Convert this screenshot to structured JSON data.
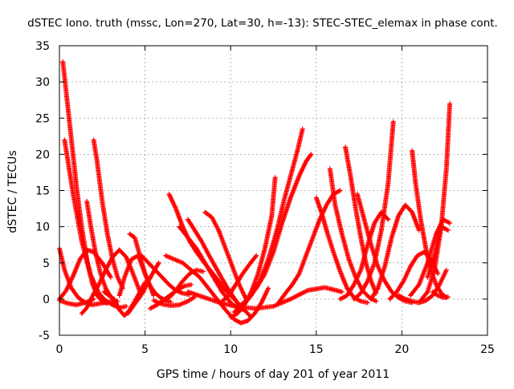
{
  "chart_data": {
    "type": "scatter",
    "title": "dSTEC Iono. truth (mssc, Lon=270, Lat=30, h=-13): STEC-STEC_elemax in phase cont.",
    "xlabel": "GPS time / hours of day 201 of year 2011",
    "ylabel": "dSTEC  / TECUs",
    "xlim": [
      0,
      25
    ],
    "ylim": [
      -5,
      35
    ],
    "xticks": [
      0,
      5,
      10,
      15,
      20,
      25
    ],
    "yticks": [
      -5,
      0,
      5,
      10,
      15,
      20,
      25,
      30,
      35
    ],
    "grid": true,
    "marker": "+",
    "color": "#ff0000",
    "series": [
      {
        "x": [
          0.2,
          0.4,
          0.7,
          1.0,
          1.3,
          1.6,
          1.9,
          2.2,
          2.5,
          2.8
        ],
        "y": [
          32.8,
          28.5,
          22.0,
          15.5,
          10.0,
          5.5,
          2.3,
          0.5,
          -0.3,
          -0.6
        ]
      },
      {
        "x": [
          0.3,
          0.8,
          1.3,
          1.8,
          2.3,
          2.7,
          3.1,
          3.5,
          3.9
        ],
        "y": [
          22.0,
          14.5,
          8.0,
          3.5,
          0.8,
          -0.2,
          -0.8,
          -1.2,
          -1.0
        ]
      },
      {
        "x": [
          0.0,
          0.3,
          0.7,
          1.1,
          1.5,
          1.9,
          2.4,
          2.9,
          3.4
        ],
        "y": [
          7.0,
          4.0,
          1.5,
          0.2,
          -0.5,
          -0.8,
          -0.6,
          -0.4,
          -0.3
        ]
      },
      {
        "x": [
          0.0,
          0.5,
          1.0,
          1.5,
          2.0
        ],
        "y": [
          -0.2,
          -0.6,
          -0.8,
          -0.5,
          0.0
        ]
      },
      {
        "x": [
          0.0,
          0.4,
          0.8,
          1.2,
          1.6,
          2.0,
          2.5,
          3.0
        ],
        "y": [
          0.0,
          1.2,
          3.2,
          5.5,
          6.8,
          6.5,
          5.0,
          3.0
        ]
      },
      {
        "x": [
          1.3,
          1.6,
          1.9,
          2.3,
          2.7,
          3.1,
          3.5,
          3.9,
          4.3,
          4.7
        ],
        "y": [
          -2.0,
          -1.2,
          0.3,
          2.0,
          4.0,
          5.8,
          6.8,
          5.8,
          3.5,
          1.0
        ]
      },
      {
        "x": [
          1.6,
          1.8,
          2.1,
          2.4,
          2.7,
          3.0,
          3.3
        ],
        "y": [
          13.5,
          10.5,
          6.5,
          3.5,
          1.5,
          0.3,
          -0.5
        ]
      },
      {
        "x": [
          2.0,
          2.2,
          2.5,
          2.8,
          3.1,
          3.4,
          3.7
        ],
        "y": [
          22.0,
          19.0,
          13.5,
          9.0,
          5.5,
          3.0,
          1.5
        ]
      },
      {
        "x": [
          2.6,
          2.9,
          3.2,
          3.5,
          3.8,
          4.1,
          4.4,
          4.7,
          5.0
        ],
        "y": [
          1.0,
          0.5,
          0.0,
          -1.5,
          -2.3,
          -1.5,
          -0.3,
          1.0,
          2.3
        ]
      },
      {
        "x": [
          3.5,
          3.8,
          4.2,
          4.6,
          5.0,
          5.5
        ],
        "y": [
          0.5,
          3.0,
          5.5,
          6.0,
          3.5,
          0.5
        ]
      },
      {
        "x": [
          4.0,
          4.3,
          4.6,
          4.9,
          5.2,
          5.5,
          5.8
        ],
        "y": [
          -2.0,
          -1.0,
          0.0,
          1.0,
          2.5,
          3.8,
          5.0
        ]
      },
      {
        "x": [
          4.1,
          4.4,
          4.7,
          5.0,
          5.3,
          5.6,
          5.9,
          6.2,
          6.5
        ],
        "y": [
          9.0,
          8.5,
          6.0,
          3.5,
          1.8,
          0.8,
          0.2,
          -0.2,
          -0.4
        ]
      },
      {
        "x": [
          4.8,
          5.2,
          5.6,
          6.0,
          6.4,
          6.8,
          7.2,
          7.6
        ],
        "y": [
          6.0,
          5.0,
          4.0,
          3.0,
          2.0,
          1.2,
          0.8,
          0.6
        ]
      },
      {
        "x": [
          5.3,
          5.7,
          6.1,
          6.5,
          6.9,
          7.3,
          7.7
        ],
        "y": [
          -1.3,
          -0.8,
          -0.1,
          0.6,
          1.3,
          1.8,
          2.0
        ]
      },
      {
        "x": [
          5.5,
          6.0,
          6.5,
          7.0,
          7.5,
          7.9
        ],
        "y": [
          -0.2,
          -0.7,
          -0.9,
          -0.8,
          -0.3,
          0.3
        ]
      },
      {
        "x": [
          6.2,
          6.5,
          6.8,
          7.2,
          7.6,
          8.0,
          8.4
        ],
        "y": [
          0.0,
          0.4,
          1.2,
          2.5,
          3.5,
          4.0,
          3.8
        ]
      },
      {
        "x": [
          6.4,
          6.8,
          7.2,
          7.6,
          8.0,
          8.4,
          8.8,
          9.2,
          9.6,
          10.0,
          10.4,
          10.8,
          11.2
        ],
        "y": [
          14.5,
          12.5,
          10.0,
          8.0,
          6.5,
          5.2,
          4.0,
          2.8,
          1.5,
          0.5,
          -0.5,
          -1.5,
          -2.5
        ]
      },
      {
        "x": [
          6.2,
          6.7,
          7.2,
          7.7,
          8.2,
          8.7,
          9.2,
          9.7,
          10.2,
          10.6,
          11.0,
          11.4,
          11.8,
          12.2
        ],
        "y": [
          6.0,
          5.5,
          5.0,
          4.0,
          3.0,
          1.5,
          0.0,
          -1.5,
          -2.8,
          -3.3,
          -3.0,
          -2.0,
          -0.5,
          1.5
        ]
      },
      {
        "x": [
          7.5,
          7.9,
          8.3,
          8.7,
          9.1,
          9.5,
          9.9,
          10.3,
          10.7
        ],
        "y": [
          11.0,
          9.5,
          8.0,
          6.2,
          4.5,
          2.8,
          1.2,
          -0.2,
          -1.5
        ]
      },
      {
        "x": [
          7.0,
          7.5,
          8.0,
          8.5,
          9.0,
          9.5,
          10.0,
          10.5
        ],
        "y": [
          10.0,
          8.5,
          7.0,
          5.0,
          3.0,
          1.0,
          -0.5,
          -1.5
        ]
      },
      {
        "x": [
          8.5,
          8.9,
          9.3,
          9.7,
          10.1,
          10.5,
          10.9
        ],
        "y": [
          12.0,
          11.3,
          9.5,
          7.0,
          4.5,
          2.0,
          0.0
        ]
      },
      {
        "x": [
          7.5,
          8.5,
          9.5,
          10.5,
          11.5,
          12.5,
          13.5,
          14.5,
          15.5,
          16.5
        ],
        "y": [
          1.0,
          0.2,
          -0.6,
          -1.1,
          -1.3,
          -1.0,
          0.0,
          1.2,
          1.6,
          1.0
        ]
      },
      {
        "x": [
          10.2,
          10.7,
          11.2,
          11.7,
          12.2,
          12.7,
          13.1,
          13.5,
          13.9,
          14.2
        ],
        "y": [
          -1.8,
          -1.0,
          0.5,
          2.5,
          5.5,
          9.5,
          13.5,
          17.0,
          20.5,
          23.5
        ]
      },
      {
        "x": [
          10.5,
          11.0,
          11.5,
          12.0,
          12.5,
          13.0,
          13.5,
          14.0,
          14.4,
          14.7
        ],
        "y": [
          -1.0,
          0.0,
          1.5,
          3.5,
          6.5,
          10.5,
          14.0,
          17.0,
          19.0,
          20.0
        ]
      },
      {
        "x": [
          10.0,
          10.4,
          10.8,
          11.2,
          11.6,
          12.0,
          12.4,
          12.6
        ],
        "y": [
          -2.5,
          -2.0,
          -0.8,
          1.0,
          3.5,
          7.0,
          11.5,
          16.8
        ]
      },
      {
        "x": [
          9.5,
          9.9,
          10.3,
          10.7,
          11.1,
          11.5
        ],
        "y": [
          -0.3,
          0.5,
          2.0,
          3.5,
          4.8,
          6.0
        ]
      },
      {
        "x": [
          12.8,
          13.2,
          13.6,
          14.0,
          14.4,
          14.8,
          15.2,
          15.6,
          16.0,
          16.4
        ],
        "y": [
          -0.5,
          0.8,
          2.0,
          3.5,
          6.0,
          8.5,
          11.0,
          13.0,
          14.5,
          15.0
        ]
      },
      {
        "x": [
          15.0,
          15.3,
          15.6,
          16.0,
          16.4,
          16.8,
          17.2,
          17.6,
          18.0
        ],
        "y": [
          14.0,
          12.0,
          9.5,
          6.5,
          3.8,
          1.5,
          0.2,
          -0.3,
          -0.5
        ]
      },
      {
        "x": [
          15.8,
          16.1,
          16.5,
          16.9,
          17.3,
          17.7,
          18.1,
          18.5
        ],
        "y": [
          18.0,
          13.0,
          9.0,
          5.5,
          3.0,
          1.2,
          0.2,
          -0.3
        ]
      },
      {
        "x": [
          16.4,
          16.8,
          17.2,
          17.6,
          18.0,
          18.4,
          18.8,
          19.2
        ],
        "y": [
          0.0,
          0.5,
          2.0,
          4.0,
          7.5,
          10.5,
          12.0,
          11.0
        ]
      },
      {
        "x": [
          16.7,
          17.0,
          17.3,
          17.6,
          17.9,
          18.2,
          18.5
        ],
        "y": [
          21.0,
          17.0,
          12.5,
          8.5,
          5.0,
          2.5,
          0.8
        ]
      },
      {
        "x": [
          17.4,
          17.8,
          18.2,
          18.6,
          19.0,
          19.4,
          19.8,
          20.2,
          20.6
        ],
        "y": [
          14.5,
          11.0,
          7.5,
          4.5,
          2.5,
          1.0,
          0.2,
          -0.3,
          -0.5
        ]
      },
      {
        "x": [
          17.2,
          17.6,
          18.0,
          18.4,
          18.8,
          19.2,
          19.5
        ],
        "y": [
          0.0,
          0.8,
          2.5,
          5.0,
          9.5,
          16.0,
          24.5
        ]
      },
      {
        "x": [
          18.2,
          18.6,
          19.0,
          19.4,
          19.8,
          20.2,
          20.6,
          21.0
        ],
        "y": [
          0.0,
          1.5,
          4.5,
          8.5,
          11.5,
          13.0,
          12.0,
          9.5
        ]
      },
      {
        "x": [
          19.3,
          19.7,
          20.1,
          20.5,
          20.9,
          21.3,
          21.7,
          22.1
        ],
        "y": [
          0.0,
          1.0,
          2.5,
          4.5,
          6.0,
          6.5,
          5.5,
          3.5
        ]
      },
      {
        "x": [
          20.6,
          20.8,
          21.1,
          21.4,
          21.7,
          22.0,
          22.3,
          22.6
        ],
        "y": [
          20.5,
          16.0,
          11.0,
          7.0,
          4.0,
          2.0,
          0.8,
          0.2
        ]
      },
      {
        "x": [
          19.8,
          20.2,
          20.6,
          21.0,
          21.4,
          21.8,
          22.2,
          22.6
        ],
        "y": [
          0.5,
          0.0,
          -0.3,
          -0.5,
          -0.2,
          0.5,
          2.0,
          4.0
        ]
      },
      {
        "x": [
          20.5,
          21.0,
          21.5,
          22.0,
          22.4,
          22.8
        ],
        "y": [
          0.5,
          2.0,
          5.0,
          9.0,
          11.0,
          10.5
        ]
      },
      {
        "x": [
          21.0,
          21.5,
          21.9,
          22.3,
          22.6,
          22.8
        ],
        "y": [
          -0.5,
          1.0,
          4.0,
          10.0,
          18.0,
          27.0
        ]
      },
      {
        "x": [
          21.5,
          21.9,
          22.3,
          22.7
        ],
        "y": [
          3.0,
          6.0,
          10.0,
          9.5
        ]
      },
      {
        "x": [
          21.8,
          22.1,
          22.4,
          22.7
        ],
        "y": [
          1.0,
          0.5,
          0.2,
          0.3
        ]
      }
    ]
  }
}
